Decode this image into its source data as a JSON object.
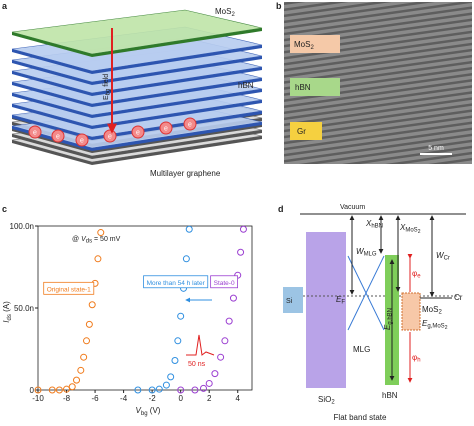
{
  "panels": {
    "a": {
      "letter": "a",
      "mos2": [
        "MoS",
        "2"
      ],
      "hbn": "hBN",
      "graphene": "Multilayer graphene",
      "field": [
        "E",
        "bg",
        " field"
      ],
      "electron": "e"
    },
    "b": {
      "letter": "b",
      "mos2": [
        "MoS",
        "2"
      ],
      "hbn": "hBN",
      "gr": "Gr",
      "scale": "5 nm"
    },
    "c": {
      "letter": "c",
      "annotation": [
        "@ ",
        "V",
        "ds",
        " = 50 mV"
      ],
      "inset_label": "50 ns"
    },
    "d": {
      "letter": "d",
      "vacuum": "Vacuum",
      "chi_hbn": [
        "X",
        "hBN"
      ],
      "chi_mos2": [
        "X",
        "MoS",
        "2"
      ],
      "w_mlg": [
        "W",
        "MLG"
      ],
      "w_cr": [
        "W",
        "Cr"
      ],
      "si": "Si",
      "ef": [
        "E",
        "F"
      ],
      "eg_hbn": [
        "E",
        "g,hBN"
      ],
      "phi_e": [
        "φ",
        "e"
      ],
      "mos2": [
        "MoS",
        "2"
      ],
      "eg_mos2": [
        "E",
        "g,MoS",
        "2"
      ],
      "phi_h": [
        "φ",
        "h"
      ],
      "cr": "Cr",
      "mlg": "MLG",
      "hbn": "hBN",
      "sio2": [
        "SiO",
        "2"
      ],
      "caption": "Flat band state"
    }
  },
  "chart_data": {
    "type": "scatter",
    "x_label": [
      "V",
      "bg",
      " (V)"
    ],
    "y_label": [
      "I",
      "ds",
      " (A)"
    ],
    "xlim": [
      -10,
      5
    ],
    "ylim": [
      0,
      1e-07
    ],
    "xticks": [
      -10,
      -8,
      -6,
      -4,
      -2,
      0,
      2,
      4
    ],
    "yticks": [
      0,
      {
        "value": 5e-08,
        "label": "50.0n"
      },
      {
        "value": 1e-07,
        "label": "100.0n"
      }
    ],
    "series": [
      {
        "name": "Original state-1",
        "color": "#f07b1c",
        "x": [
          -10,
          -9,
          -8.5,
          -8,
          -7.6,
          -7.3,
          -7,
          -6.8,
          -6.6,
          -6.4,
          -6.2,
          -6,
          -5.8,
          -5.6
        ],
        "values": [
          0,
          0,
          0,
          5e-10,
          2e-09,
          6e-09,
          1.2e-08,
          2e-08,
          3e-08,
          4e-08,
          5.2e-08,
          6.5e-08,
          8e-08,
          9.6e-08
        ]
      },
      {
        "name": "More than 54 h later",
        "color": "#2f8fe0",
        "x": [
          -3,
          -2,
          -1.5,
          -1,
          -0.7,
          -0.4,
          -0.2,
          0,
          0.2,
          0.4,
          0.6
        ],
        "values": [
          0,
          0,
          5e-10,
          3e-09,
          8e-09,
          1.8e-08,
          3e-08,
          4.5e-08,
          6.2e-08,
          8e-08,
          9.8e-08
        ]
      },
      {
        "name": "State-0",
        "color": "#9b3fd1",
        "x": [
          0,
          1,
          1.6,
          2,
          2.4,
          2.8,
          3.1,
          3.4,
          3.7,
          4,
          4.2,
          4.4
        ],
        "values": [
          0,
          0,
          1e-09,
          4e-09,
          1e-08,
          2e-08,
          3e-08,
          4.2e-08,
          5.6e-08,
          7e-08,
          8.4e-08,
          9.8e-08
        ]
      }
    ]
  }
}
